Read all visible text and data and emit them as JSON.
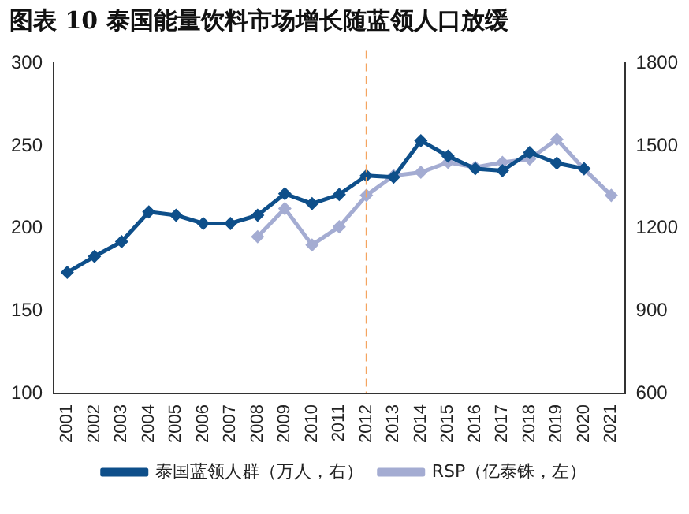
{
  "chart_data": {
    "type": "line",
    "title": "图表 10 泰国能量饮料市场增长随蓝领人口放缓",
    "categories": [
      "2001",
      "2002",
      "2003",
      "2004",
      "2005",
      "2006",
      "2007",
      "2008",
      "2009",
      "2010",
      "2011",
      "2012",
      "2013",
      "2014",
      "2015",
      "2016",
      "2017",
      "2018",
      "2019",
      "2020",
      "2021"
    ],
    "series": [
      {
        "name": "RSP（亿泰铢，左）",
        "color": "#a4acd2",
        "values": [
          null,
          null,
          null,
          null,
          null,
          null,
          null,
          195,
          212,
          190,
          201,
          220,
          232,
          234,
          240,
          237,
          240,
          242,
          254,
          236,
          220
        ]
      },
      {
        "name": "泰国蓝领人群（万人，右）",
        "color": "#0e4f8a",
        "axis": "y2",
        "values": [
          1040,
          1098,
          1152,
          1260,
          1248,
          1218,
          1218,
          1248,
          1326,
          1290,
          1323,
          1392,
          1386,
          1519,
          1463,
          1417,
          1410,
          1476,
          1437,
          1417,
          null
        ]
      }
    ],
    "ylim": [
      100,
      300
    ],
    "yticks": [
      100,
      150,
      200,
      250,
      300
    ],
    "y2lim": [
      600,
      1800
    ],
    "y2ticks": [
      600,
      900,
      1200,
      1500,
      1800
    ],
    "ref_lines": [
      {
        "axis": "x",
        "value": "2012",
        "color": "#f4a460",
        "line_style": "dashed"
      }
    ],
    "grid": false,
    "legend": "bottom",
    "marker": "diamond",
    "line_style": "solid"
  }
}
